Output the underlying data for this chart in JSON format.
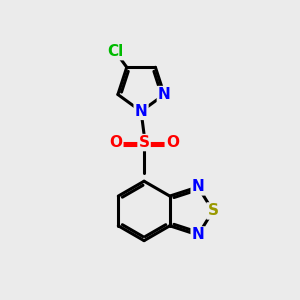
{
  "background_color": "#ebebeb",
  "bond_color": "#000000",
  "bond_width": 2.2,
  "atom_colors": {
    "N": "#0000FF",
    "S_sulfonyl": "#FF0000",
    "S_thiadiazole": "#999900",
    "O": "#FF0000",
    "Cl": "#00BB00",
    "C": "#000000"
  },
  "font_size": 11
}
